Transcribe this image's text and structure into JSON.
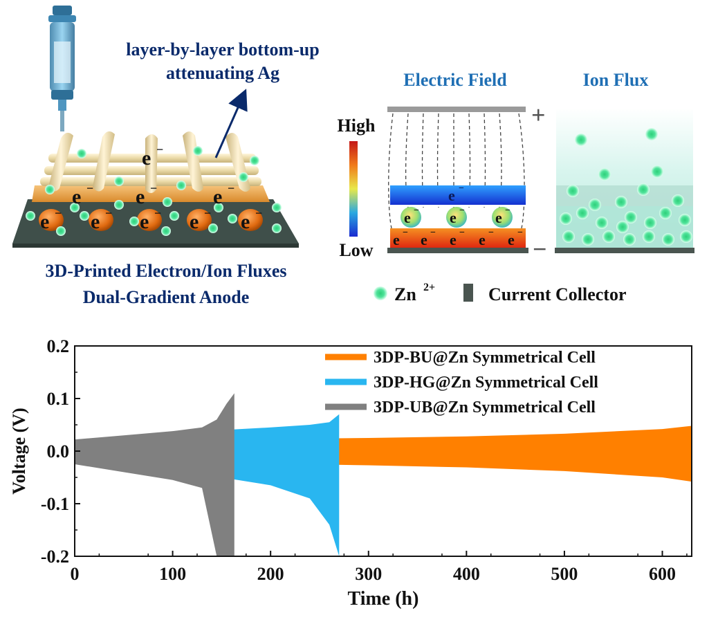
{
  "panel_a": {
    "annotation": "layer-by-layer bottom-up",
    "annotation_2": "attenuating Ag",
    "electron_symbol": "e",
    "caption_line1": "3D-Printed Electron/Ion Fluxes",
    "caption_line2": "Dual-Gradient Anode"
  },
  "panel_b": {
    "electric_field_title": "Electric Field",
    "ion_flux_title": "Ion Flux",
    "scale_high": "High",
    "scale_low": "Low",
    "plus_sign": "+",
    "minus_sign": "−",
    "electron_symbol": "e",
    "legend": {
      "zn_label": "Zn",
      "zn_superscript": "2+",
      "collector_label": "Current Collector"
    },
    "colors": {
      "title": "#1f6fb4",
      "zn_ion": "#4fe39a",
      "collector": "#4a5550"
    }
  },
  "chart_data": {
    "type": "line",
    "title": "",
    "xlabel": "Time (h)",
    "ylabel": "Voltage (V)",
    "xlim": [
      0,
      630
    ],
    "ylim": [
      -0.2,
      0.2
    ],
    "xticks": [
      "0",
      "100",
      "200",
      "300",
      "400",
      "500",
      "600"
    ],
    "yticks": [
      "0.2",
      "0.1",
      "0.0",
      "-0.1",
      "-0.2"
    ],
    "legend_position": "top-right",
    "series": [
      {
        "name": "3DP-BU@Zn Symmetrical Cell",
        "color": "#ff8000",
        "x": [
          0,
          100,
          200,
          300,
          400,
          500,
          600,
          630
        ],
        "upper": [
          0.022,
          0.022,
          0.023,
          0.025,
          0.028,
          0.033,
          0.042,
          0.048
        ],
        "lower": [
          -0.022,
          -0.022,
          -0.024,
          -0.027,
          -0.031,
          -0.038,
          -0.05,
          -0.058
        ]
      },
      {
        "name": "3DP-HG@Zn Symmetrical Cell",
        "color": "#29b6f0",
        "x": [
          0,
          50,
          100,
          150,
          200,
          240,
          260,
          270
        ],
        "upper": [
          0.022,
          0.028,
          0.034,
          0.04,
          0.045,
          0.05,
          0.055,
          0.07
        ],
        "lower": [
          -0.022,
          -0.03,
          -0.04,
          -0.05,
          -0.065,
          -0.09,
          -0.14,
          -0.2
        ]
      },
      {
        "name": "3DP-UB@Zn Symmetrical Cell",
        "color": "#808080",
        "x": [
          0,
          50,
          100,
          130,
          145,
          155,
          163
        ],
        "upper": [
          0.022,
          0.03,
          0.038,
          0.045,
          0.06,
          0.09,
          0.11
        ],
        "lower": [
          -0.025,
          -0.04,
          -0.055,
          -0.07,
          -0.2,
          -0.2,
          -0.2
        ]
      }
    ]
  }
}
